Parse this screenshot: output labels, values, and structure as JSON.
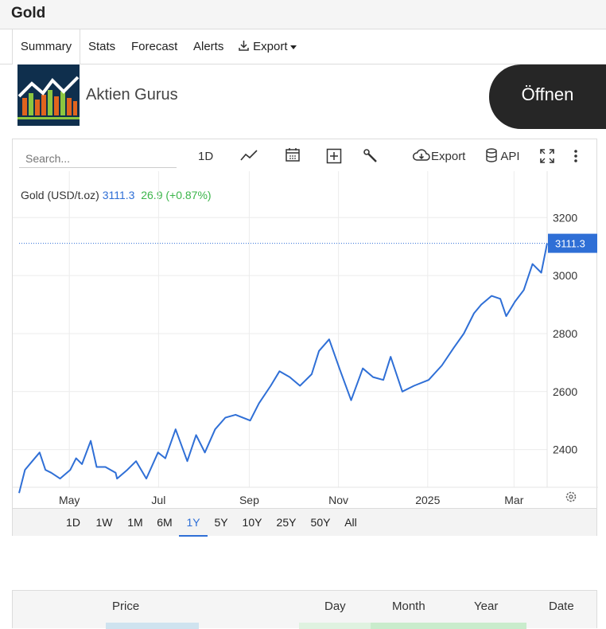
{
  "page": {
    "title": "Gold"
  },
  "tabs": [
    {
      "label": "Summary",
      "active": true
    },
    {
      "label": "Stats"
    },
    {
      "label": "Forecast"
    },
    {
      "label": "Alerts"
    },
    {
      "label": "Export",
      "icon": "download-icon",
      "dropdown": true
    }
  ],
  "ad": {
    "name": "Aktien Gurus",
    "button": "Öffnen",
    "logo_icon": "bar-chart-logo-icon"
  },
  "chart_toolbar": {
    "search_placeholder": "Search...",
    "interval": "1D",
    "export_label": "Export",
    "api_label": "API",
    "icons": [
      "line-chart-icon",
      "calendar-icon",
      "add-box-icon",
      "wrench-icon",
      "cloud-download-icon",
      "database-icon",
      "fullscreen-icon",
      "more-vertical-icon",
      "settings-gear-icon"
    ]
  },
  "legend": {
    "name": "Gold (USD/t.oz)",
    "price": "3111.3",
    "change": "26.9 (+0.87%)"
  },
  "periods": [
    "1D",
    "1W",
    "1M",
    "6M",
    "1Y",
    "5Y",
    "10Y",
    "25Y",
    "50Y",
    "All"
  ],
  "active_period": "1Y",
  "table": {
    "headers": [
      "Price",
      "Day",
      "Month",
      "Year",
      "Date"
    ]
  },
  "colors": {
    "line": "#2f6fd6",
    "up": "#3bb54a",
    "price_tag": "#2f6fd6"
  },
  "chart_data": {
    "type": "line",
    "title": "Gold (USD/t.oz)",
    "ylim": [
      2270,
      3360
    ],
    "yticks": [
      2400,
      2600,
      2800,
      3000,
      3200
    ],
    "xtick_labels": [
      "May",
      "Jul",
      "Sep",
      "Nov",
      "2025",
      "Mar"
    ],
    "last_value": 3111.3,
    "grid": true,
    "series": [
      {
        "x": [
          "2024-04-01",
          "2024-04-05",
          "2024-04-10",
          "2024-04-15",
          "2024-04-19",
          "2024-04-23",
          "2024-04-29",
          "2024-05-06",
          "2024-05-10",
          "2024-05-14",
          "2024-05-20",
          "2024-05-24",
          "2024-05-30",
          "2024-06-06",
          "2024-06-07",
          "2024-06-14",
          "2024-06-20",
          "2024-06-27",
          "2024-07-05",
          "2024-07-10",
          "2024-07-17",
          "2024-07-25",
          "2024-07-31",
          "2024-08-06",
          "2024-08-13",
          "2024-08-20",
          "2024-08-27",
          "2024-09-06",
          "2024-09-12",
          "2024-09-20",
          "2024-09-26",
          "2024-10-03",
          "2024-10-10",
          "2024-10-18",
          "2024-10-23",
          "2024-10-30",
          "2024-11-06",
          "2024-11-14",
          "2024-11-22",
          "2024-11-29",
          "2024-12-06",
          "2024-12-11",
          "2024-12-19",
          "2024-12-27",
          "2025-01-06",
          "2025-01-15",
          "2025-01-23",
          "2025-01-30",
          "2025-02-06",
          "2025-02-11",
          "2025-02-18",
          "2025-02-24",
          "2025-02-28",
          "2025-03-06",
          "2025-03-12",
          "2025-03-18",
          "2025-03-24",
          "2025-03-28"
        ],
        "y": [
          2250,
          2330,
          2360,
          2390,
          2330,
          2320,
          2300,
          2330,
          2370,
          2350,
          2430,
          2340,
          2340,
          2320,
          2300,
          2330,
          2360,
          2300,
          2390,
          2370,
          2470,
          2360,
          2450,
          2390,
          2470,
          2510,
          2520,
          2500,
          2560,
          2620,
          2670,
          2650,
          2620,
          2660,
          2740,
          2780,
          2680,
          2570,
          2680,
          2650,
          2640,
          2720,
          2600,
          2620,
          2640,
          2690,
          2750,
          2800,
          2870,
          2900,
          2930,
          2920,
          2860,
          2910,
          2950,
          3040,
          3010,
          3111.3
        ]
      }
    ]
  }
}
